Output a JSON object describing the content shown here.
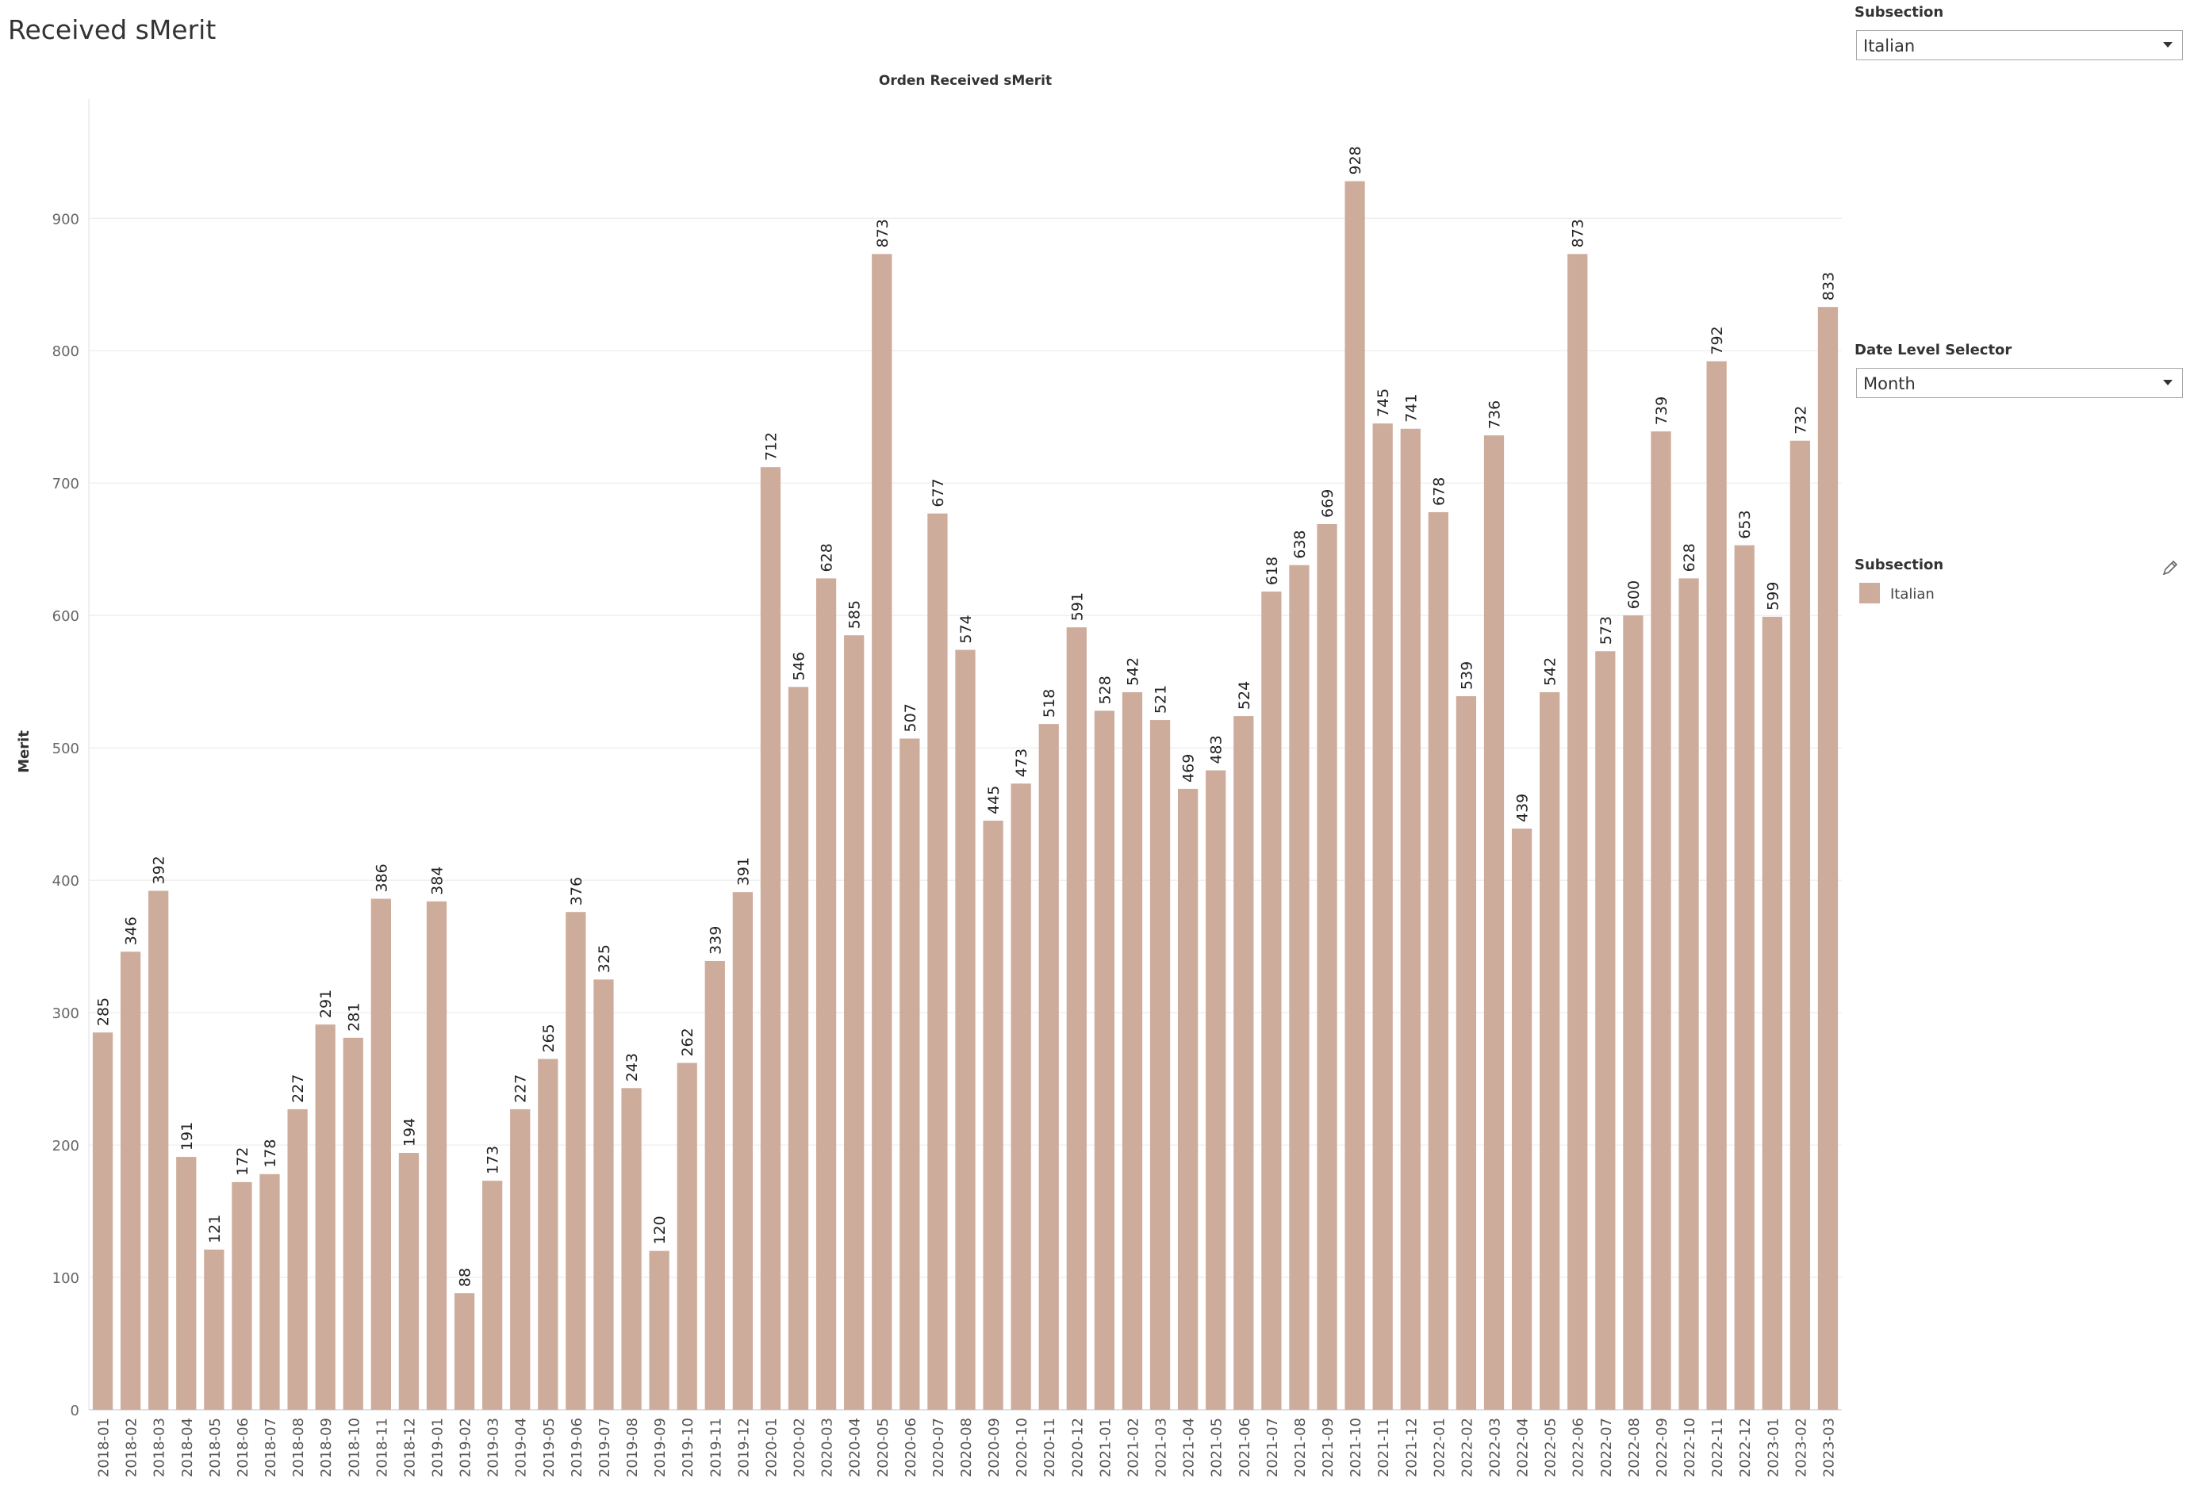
{
  "page": {
    "title": "Received sMerit"
  },
  "controls": {
    "subsection_filter": {
      "label": "Subsection",
      "value": "Italian"
    },
    "date_level": {
      "label": "Date Level Selector",
      "value": "Month"
    }
  },
  "legend": {
    "title": "Subsection",
    "items": [
      {
        "label": "Italian",
        "color": "#cdac9c"
      }
    ]
  },
  "chart_data": {
    "type": "bar",
    "title": "Orden Received sMerit",
    "xlabel": "",
    "ylabel": "Merit",
    "ylim": [
      0,
      990
    ],
    "yticks": [
      0,
      100,
      200,
      300,
      400,
      500,
      600,
      700,
      800,
      900
    ],
    "grid": true,
    "bar_color": "#cdac9c",
    "categories": [
      "2018-01",
      "2018-02",
      "2018-03",
      "2018-04",
      "2018-05",
      "2018-06",
      "2018-07",
      "2018-08",
      "2018-09",
      "2018-10",
      "2018-11",
      "2018-12",
      "2019-01",
      "2019-02",
      "2019-03",
      "2019-04",
      "2019-05",
      "2019-06",
      "2019-07",
      "2019-08",
      "2019-09",
      "2019-10",
      "2019-11",
      "2019-12",
      "2020-01",
      "2020-02",
      "2020-03",
      "2020-04",
      "2020-05",
      "2020-06",
      "2020-07",
      "2020-08",
      "2020-09",
      "2020-10",
      "2020-11",
      "2020-12",
      "2021-01",
      "2021-02",
      "2021-03",
      "2021-04",
      "2021-05",
      "2021-06",
      "2021-07",
      "2021-08",
      "2021-09",
      "2021-10",
      "2021-11",
      "2021-12",
      "2022-01",
      "2022-02",
      "2022-03",
      "2022-04",
      "2022-05",
      "2022-06",
      "2022-07",
      "2022-08",
      "2022-09",
      "2022-10",
      "2022-11",
      "2022-12",
      "2023-01",
      "2023-02",
      "2023-03"
    ],
    "values": [
      285,
      346,
      392,
      191,
      121,
      172,
      178,
      227,
      291,
      281,
      386,
      194,
      384,
      88,
      173,
      227,
      265,
      376,
      325,
      243,
      120,
      262,
      339,
      391,
      712,
      546,
      628,
      585,
      873,
      507,
      677,
      574,
      445,
      473,
      518,
      591,
      528,
      542,
      521,
      469,
      483,
      524,
      618,
      638,
      669,
      928,
      745,
      741,
      678,
      539,
      736,
      439,
      542,
      873,
      573,
      600,
      739,
      628,
      792,
      653,
      599,
      732,
      833
    ]
  }
}
